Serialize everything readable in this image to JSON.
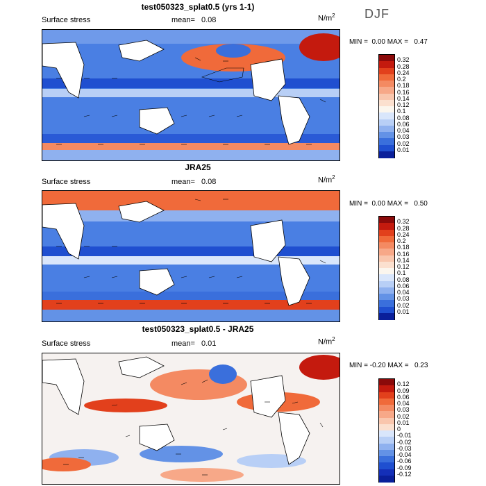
{
  "season": "DJF",
  "panels": [
    {
      "title": "test050323_splat0.5 (yrs 1-1)",
      "label": "Surface stress",
      "mean_label": "mean=",
      "mean_value": "0.08",
      "unit": "N/m",
      "unit_sup": "2",
      "min_label": "MIN =",
      "min_value": "0.00",
      "max_label": "MAX =",
      "max_value": "0.47",
      "colorbar": {
        "ticks": [
          "0.32",
          "0.28",
          "0.24",
          "0.2",
          "0.18",
          "0.16",
          "0.14",
          "0.12",
          "0.1",
          "0.08",
          "0.06",
          "0.04",
          "0.03",
          "0.02",
          "0.01"
        ],
        "colors": [
          "#8b0a0a",
          "#c41a0e",
          "#e2401c",
          "#f06a3a",
          "#f48a62",
          "#f7a888",
          "#f9c6ad",
          "#fbe0cf",
          "#fbf6ee",
          "#d9e6fb",
          "#b8cff6",
          "#8fb1ef",
          "#6392e6",
          "#3a6fdc",
          "#1f4fd0",
          "#0a1f9a"
        ]
      }
    },
    {
      "title": "JRA25",
      "label": "Surface stress",
      "mean_label": "mean=",
      "mean_value": "0.08",
      "unit": "N/m",
      "unit_sup": "2",
      "min_label": "MIN =",
      "min_value": "0.00",
      "max_label": "MAX =",
      "max_value": "0.50",
      "colorbar": {
        "ticks": [
          "0.32",
          "0.28",
          "0.24",
          "0.2",
          "0.18",
          "0.16",
          "0.14",
          "0.12",
          "0.1",
          "0.08",
          "0.06",
          "0.04",
          "0.03",
          "0.02",
          "0.01"
        ],
        "colors": [
          "#8b0a0a",
          "#c41a0e",
          "#e2401c",
          "#f06a3a",
          "#f48a62",
          "#f7a888",
          "#f9c6ad",
          "#fbe0cf",
          "#fbf6ee",
          "#d9e6fb",
          "#b8cff6",
          "#8fb1ef",
          "#6392e6",
          "#3a6fdc",
          "#1f4fd0",
          "#0a1f9a"
        ]
      }
    },
    {
      "title": "test050323_splat0.5 - JRA25",
      "label": "Surface stress",
      "mean_label": "mean=",
      "mean_value": "0.01",
      "unit": "N/m",
      "unit_sup": "2",
      "min_label": "MIN =",
      "min_value": "-0.20",
      "max_label": "MAX =",
      "max_value": "0.23",
      "colorbar": {
        "ticks": [
          "0.12",
          "0.09",
          "0.06",
          "0.04",
          "0.03",
          "0.02",
          "0.01",
          "0",
          "-0.01",
          "-0.02",
          "-0.03",
          "-0.04",
          "-0.06",
          "-0.09",
          "-0.12"
        ],
        "colors": [
          "#8b0a0a",
          "#c41a0e",
          "#e2401c",
          "#f06a3a",
          "#f48a62",
          "#f7a888",
          "#f9c6ad",
          "#fbe0cf",
          "#d9e6fb",
          "#b8cff6",
          "#8fb1ef",
          "#6392e6",
          "#3a6fdc",
          "#1f4fd0",
          "#142fb8",
          "#0a1f9a"
        ]
      }
    }
  ],
  "chart_data": [
    {
      "type": "heatmap",
      "title": "test050323_splat0.5 (yrs 1-1)",
      "variable": "Surface stress",
      "units": "N/m2",
      "mean": 0.08,
      "min": 0.0,
      "max": 0.47,
      "colorbar_levels": [
        0.01,
        0.02,
        0.03,
        0.04,
        0.06,
        0.08,
        0.1,
        0.12,
        0.14,
        0.16,
        0.18,
        0.2,
        0.24,
        0.28,
        0.32
      ],
      "overlay": "wind-stress vectors"
    },
    {
      "type": "heatmap",
      "title": "JRA25",
      "variable": "Surface stress",
      "units": "N/m2",
      "mean": 0.08,
      "min": 0.0,
      "max": 0.5,
      "colorbar_levels": [
        0.01,
        0.02,
        0.03,
        0.04,
        0.06,
        0.08,
        0.1,
        0.12,
        0.14,
        0.16,
        0.18,
        0.2,
        0.24,
        0.28,
        0.32
      ],
      "overlay": "wind-stress vectors"
    },
    {
      "type": "heatmap",
      "title": "test050323_splat0.5 - JRA25",
      "variable": "Surface stress",
      "units": "N/m2",
      "mean": 0.01,
      "min": -0.2,
      "max": 0.23,
      "colorbar_levels": [
        -0.12,
        -0.09,
        -0.06,
        -0.04,
        -0.03,
        -0.02,
        -0.01,
        0,
        0.01,
        0.02,
        0.03,
        0.04,
        0.06,
        0.09,
        0.12
      ],
      "overlay": "wind-stress difference vectors"
    }
  ]
}
